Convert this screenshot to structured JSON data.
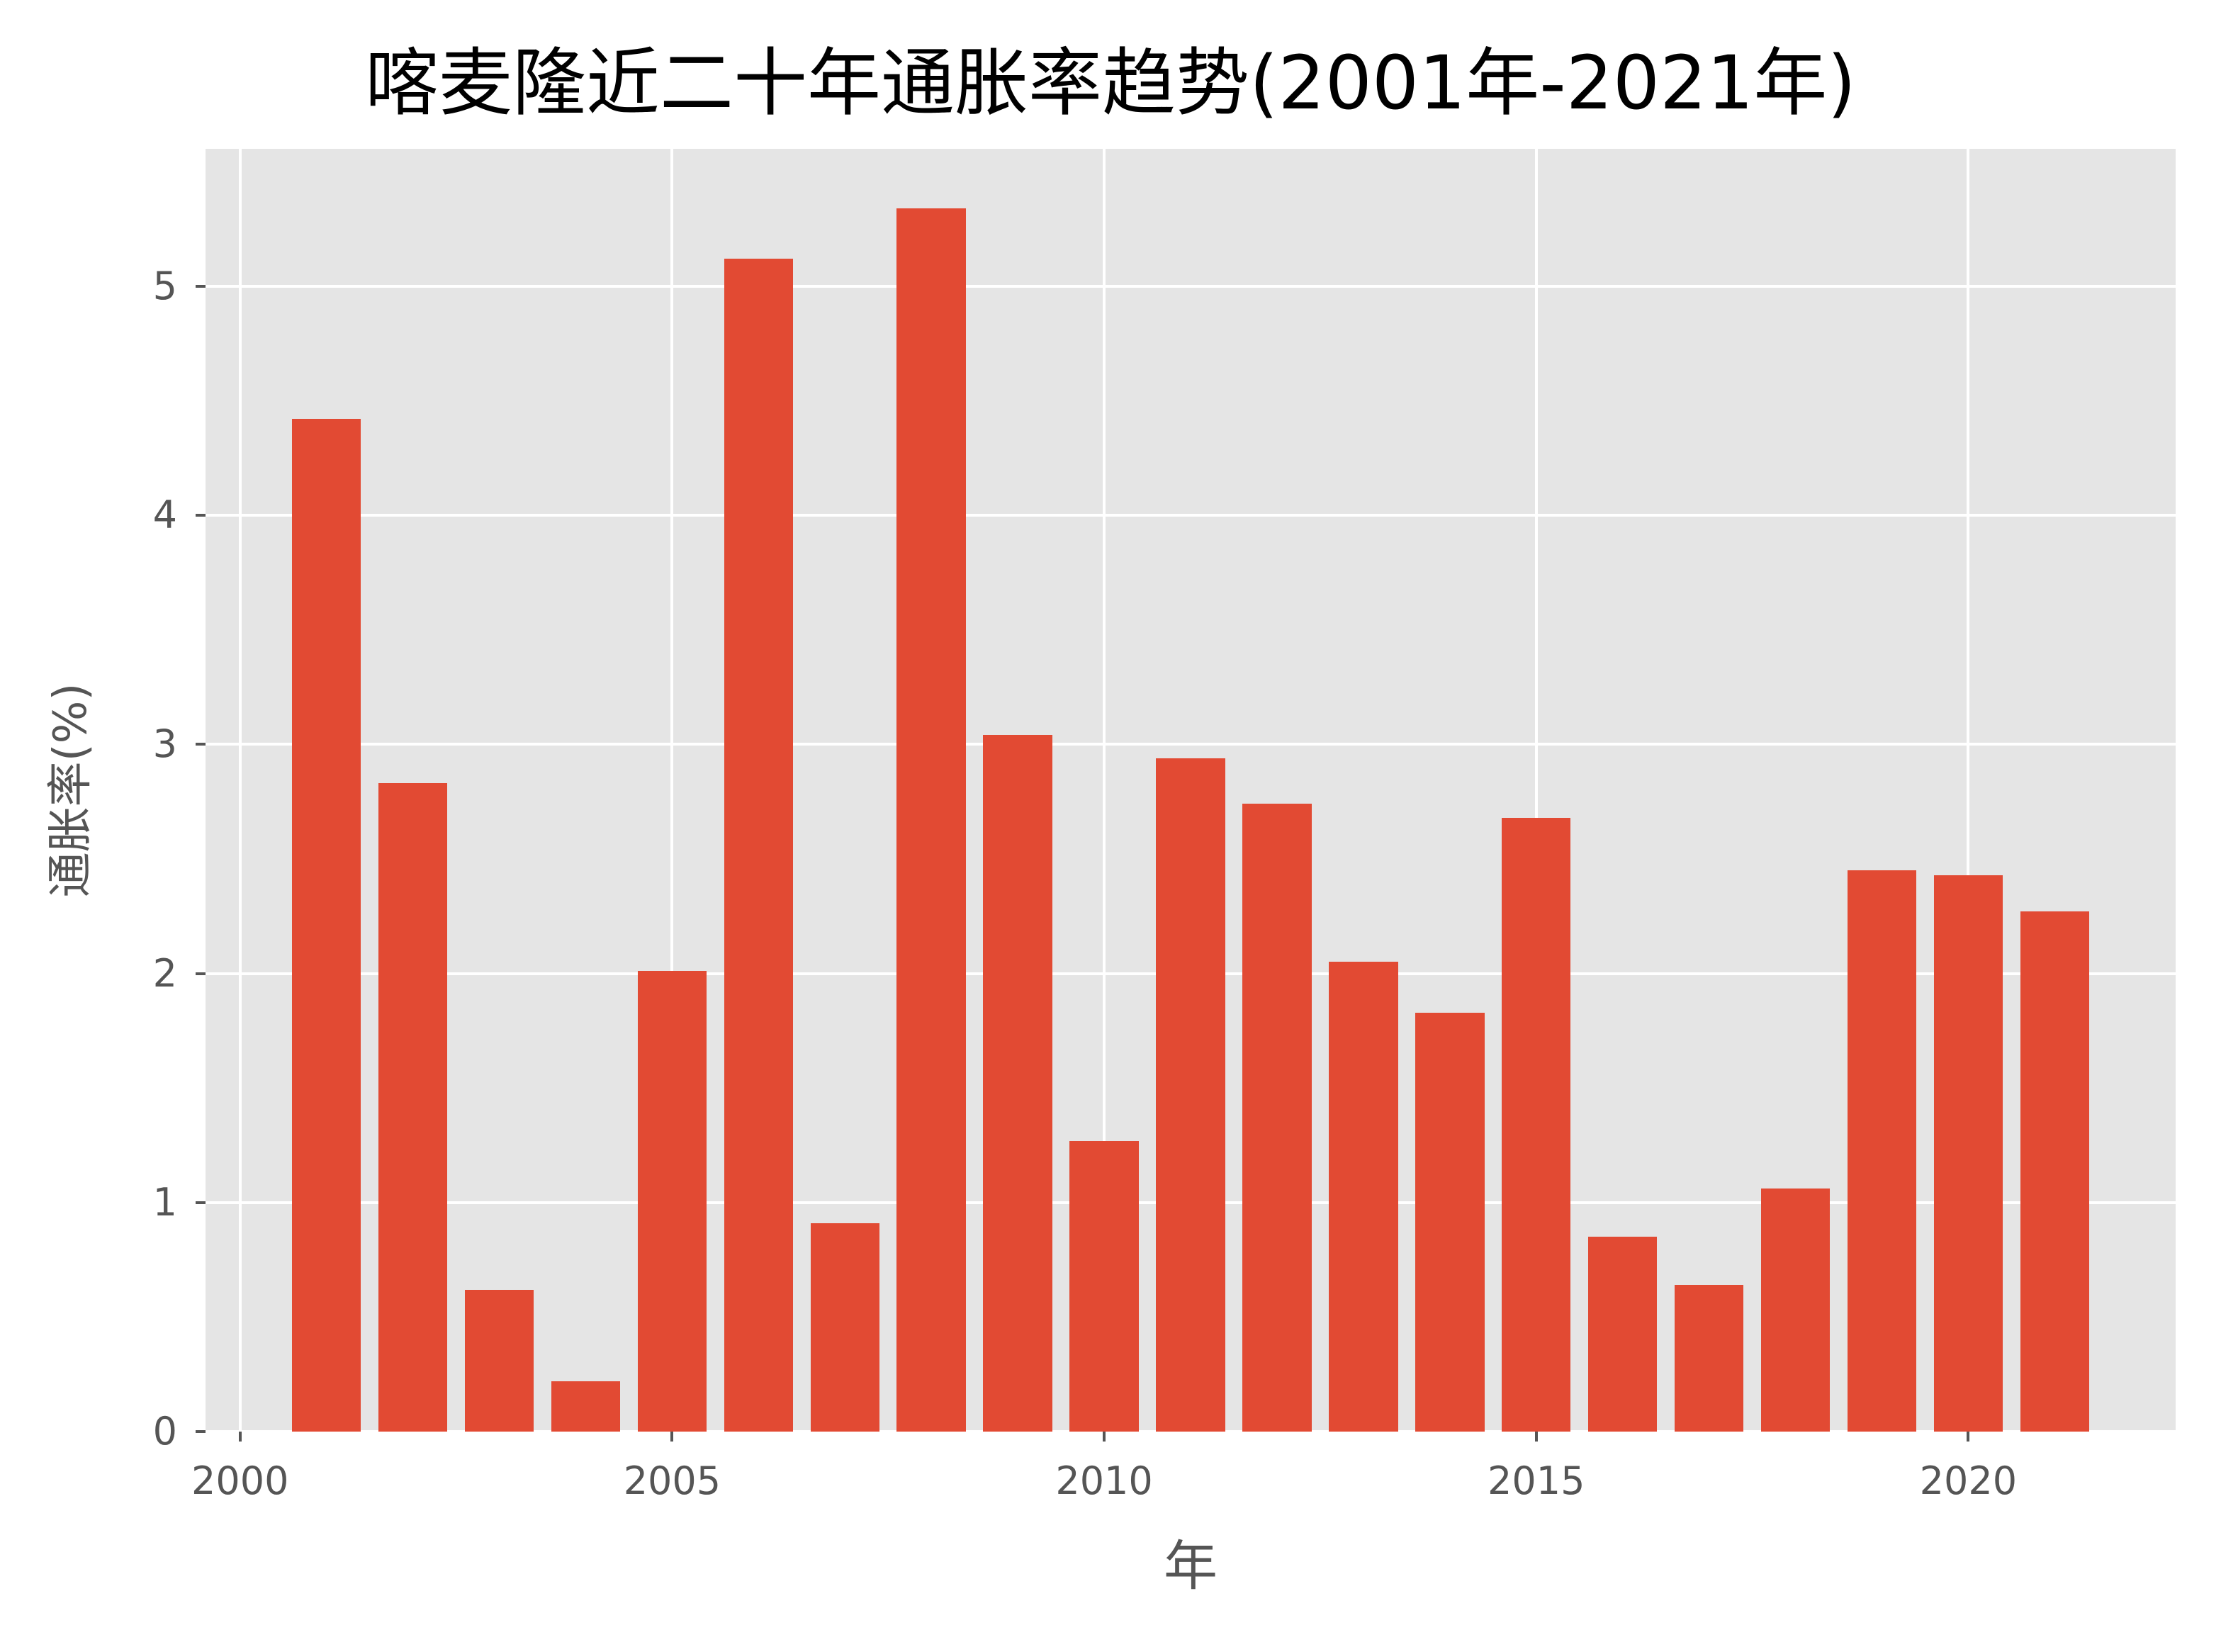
{
  "chart_data": {
    "type": "bar",
    "title": "喀麦隆近二十年通胀率趋势(2001年-2021年)",
    "xlabel": "年",
    "ylabel": "通胀率(%)",
    "categories": [
      2001,
      2002,
      2003,
      2004,
      2005,
      2006,
      2007,
      2008,
      2009,
      2010,
      2011,
      2012,
      2013,
      2014,
      2015,
      2016,
      2017,
      2018,
      2019,
      2020,
      2021
    ],
    "values": [
      4.42,
      2.83,
      0.62,
      0.22,
      2.01,
      5.12,
      0.91,
      5.34,
      3.04,
      1.27,
      2.94,
      2.74,
      2.05,
      1.83,
      2.68,
      0.85,
      0.64,
      1.06,
      2.45,
      2.43,
      2.27
    ],
    "xlim": [
      1999.6,
      2022.4
    ],
    "ylim": [
      0,
      5.6
    ],
    "xticks": [
      2000,
      2005,
      2010,
      2015,
      2020
    ],
    "yticks": [
      0,
      1,
      2,
      3,
      4,
      5
    ],
    "grid": true,
    "legend": null,
    "bar_color": "#e24a33",
    "background_color": "#e5e5e5",
    "style": "ggplot"
  }
}
